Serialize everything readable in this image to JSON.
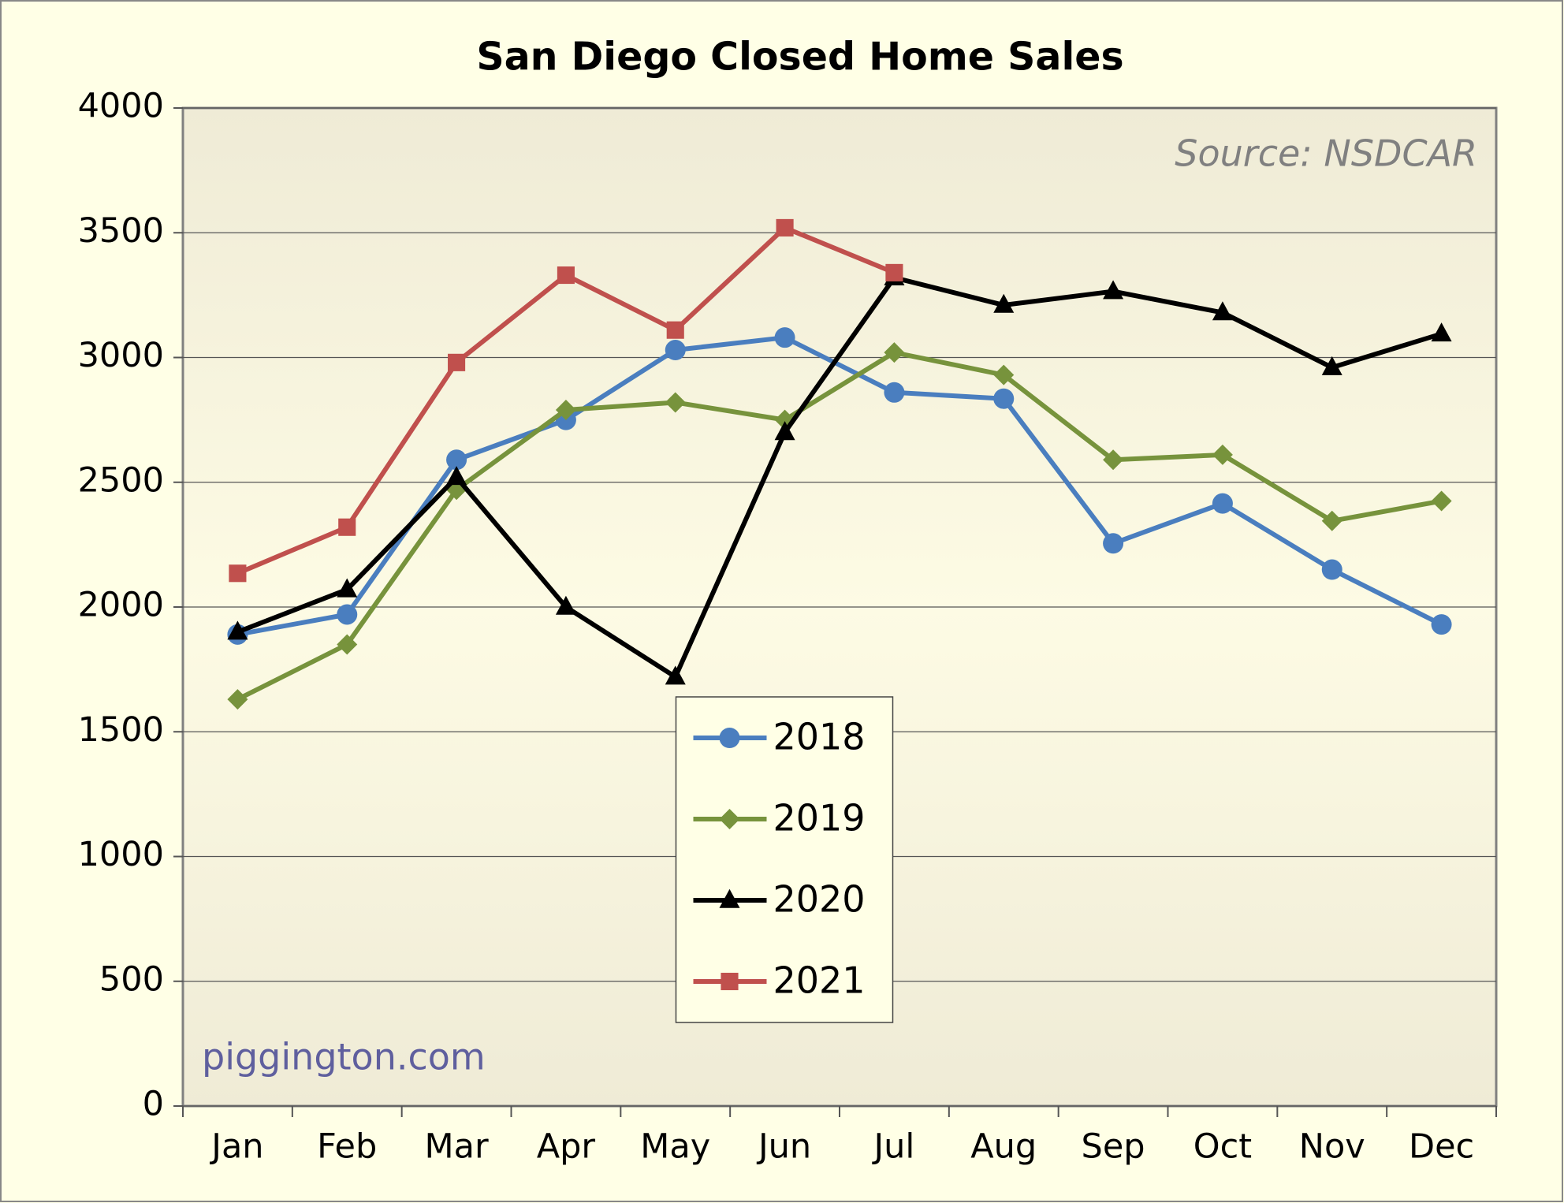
{
  "chart_data": {
    "type": "line",
    "title": "San Diego Closed Home Sales",
    "categories": [
      "Jan",
      "Feb",
      "Mar",
      "Apr",
      "May",
      "Jun",
      "Jul",
      "Aug",
      "Sep",
      "Oct",
      "Nov",
      "Dec"
    ],
    "series": [
      {
        "name": "2018",
        "color": "#4a7ebf",
        "marker": "circle",
        "values": [
          1890,
          1970,
          2590,
          2750,
          3030,
          3080,
          2860,
          2835,
          2255,
          2415,
          2150,
          1930
        ]
      },
      {
        "name": "2019",
        "color": "#77933c",
        "marker": "diamond",
        "values": [
          1630,
          1850,
          2470,
          2790,
          2820,
          2750,
          3020,
          2930,
          2590,
          2610,
          2345,
          2425
        ]
      },
      {
        "name": "2020",
        "color": "#000000",
        "marker": "triangle",
        "values": [
          1900,
          2070,
          2520,
          2000,
          1720,
          2700,
          3320,
          3210,
          3265,
          3180,
          2960,
          3095
        ]
      },
      {
        "name": "2021",
        "color": "#c0504d",
        "marker": "square",
        "values": [
          2135,
          2320,
          2980,
          3330,
          3110,
          3520,
          3340,
          null,
          null,
          null,
          null,
          null
        ]
      }
    ],
    "ylim": [
      0,
      4000
    ],
    "yticks": [
      0,
      500,
      1000,
      1500,
      2000,
      2500,
      3000,
      3500,
      4000
    ],
    "grid": true,
    "legend": "lower center",
    "annotations": [
      "Source: NSDCAR",
      "piggington.com"
    ]
  }
}
